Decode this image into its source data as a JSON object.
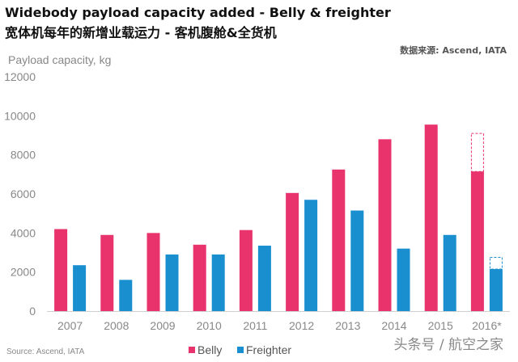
{
  "header": {
    "title": "Widebody payload capacity added - Belly & freighter",
    "subtitle": "宽体机每年的新增业载运力 - 客机腹舱&全货机",
    "source_top": "数据来源: Ascend, IATA"
  },
  "footer": {
    "source": "Source: Ascend, IATA",
    "watermark": "头条号 / 航空之家"
  },
  "chart_data": {
    "type": "bar",
    "ylabel": "Payload capacity, kg",
    "ylim": [
      0,
      12000
    ],
    "yticks": [
      0,
      2000,
      4000,
      6000,
      8000,
      10000,
      12000
    ],
    "categories": [
      "2007",
      "2008",
      "2009",
      "2010",
      "2011",
      "2012",
      "2013",
      "2014",
      "2015",
      "2016*"
    ],
    "series": [
      {
        "name": "Belly",
        "color": "#e8336d",
        "values": [
          4200,
          3900,
          4000,
          3400,
          4150,
          6050,
          7250,
          8800,
          9550,
          7150
        ],
        "dashed_extension": [
          null,
          null,
          null,
          null,
          null,
          null,
          null,
          null,
          null,
          9100
        ]
      },
      {
        "name": "Freighter",
        "color": "#1a8fd0",
        "values": [
          2350,
          1600,
          2900,
          2900,
          3350,
          5700,
          5150,
          3200,
          3900,
          2150
        ],
        "dashed_extension": [
          null,
          null,
          null,
          null,
          null,
          null,
          null,
          null,
          null,
          2750
        ]
      }
    ],
    "grid": false,
    "legend_position": "bottom-center"
  }
}
